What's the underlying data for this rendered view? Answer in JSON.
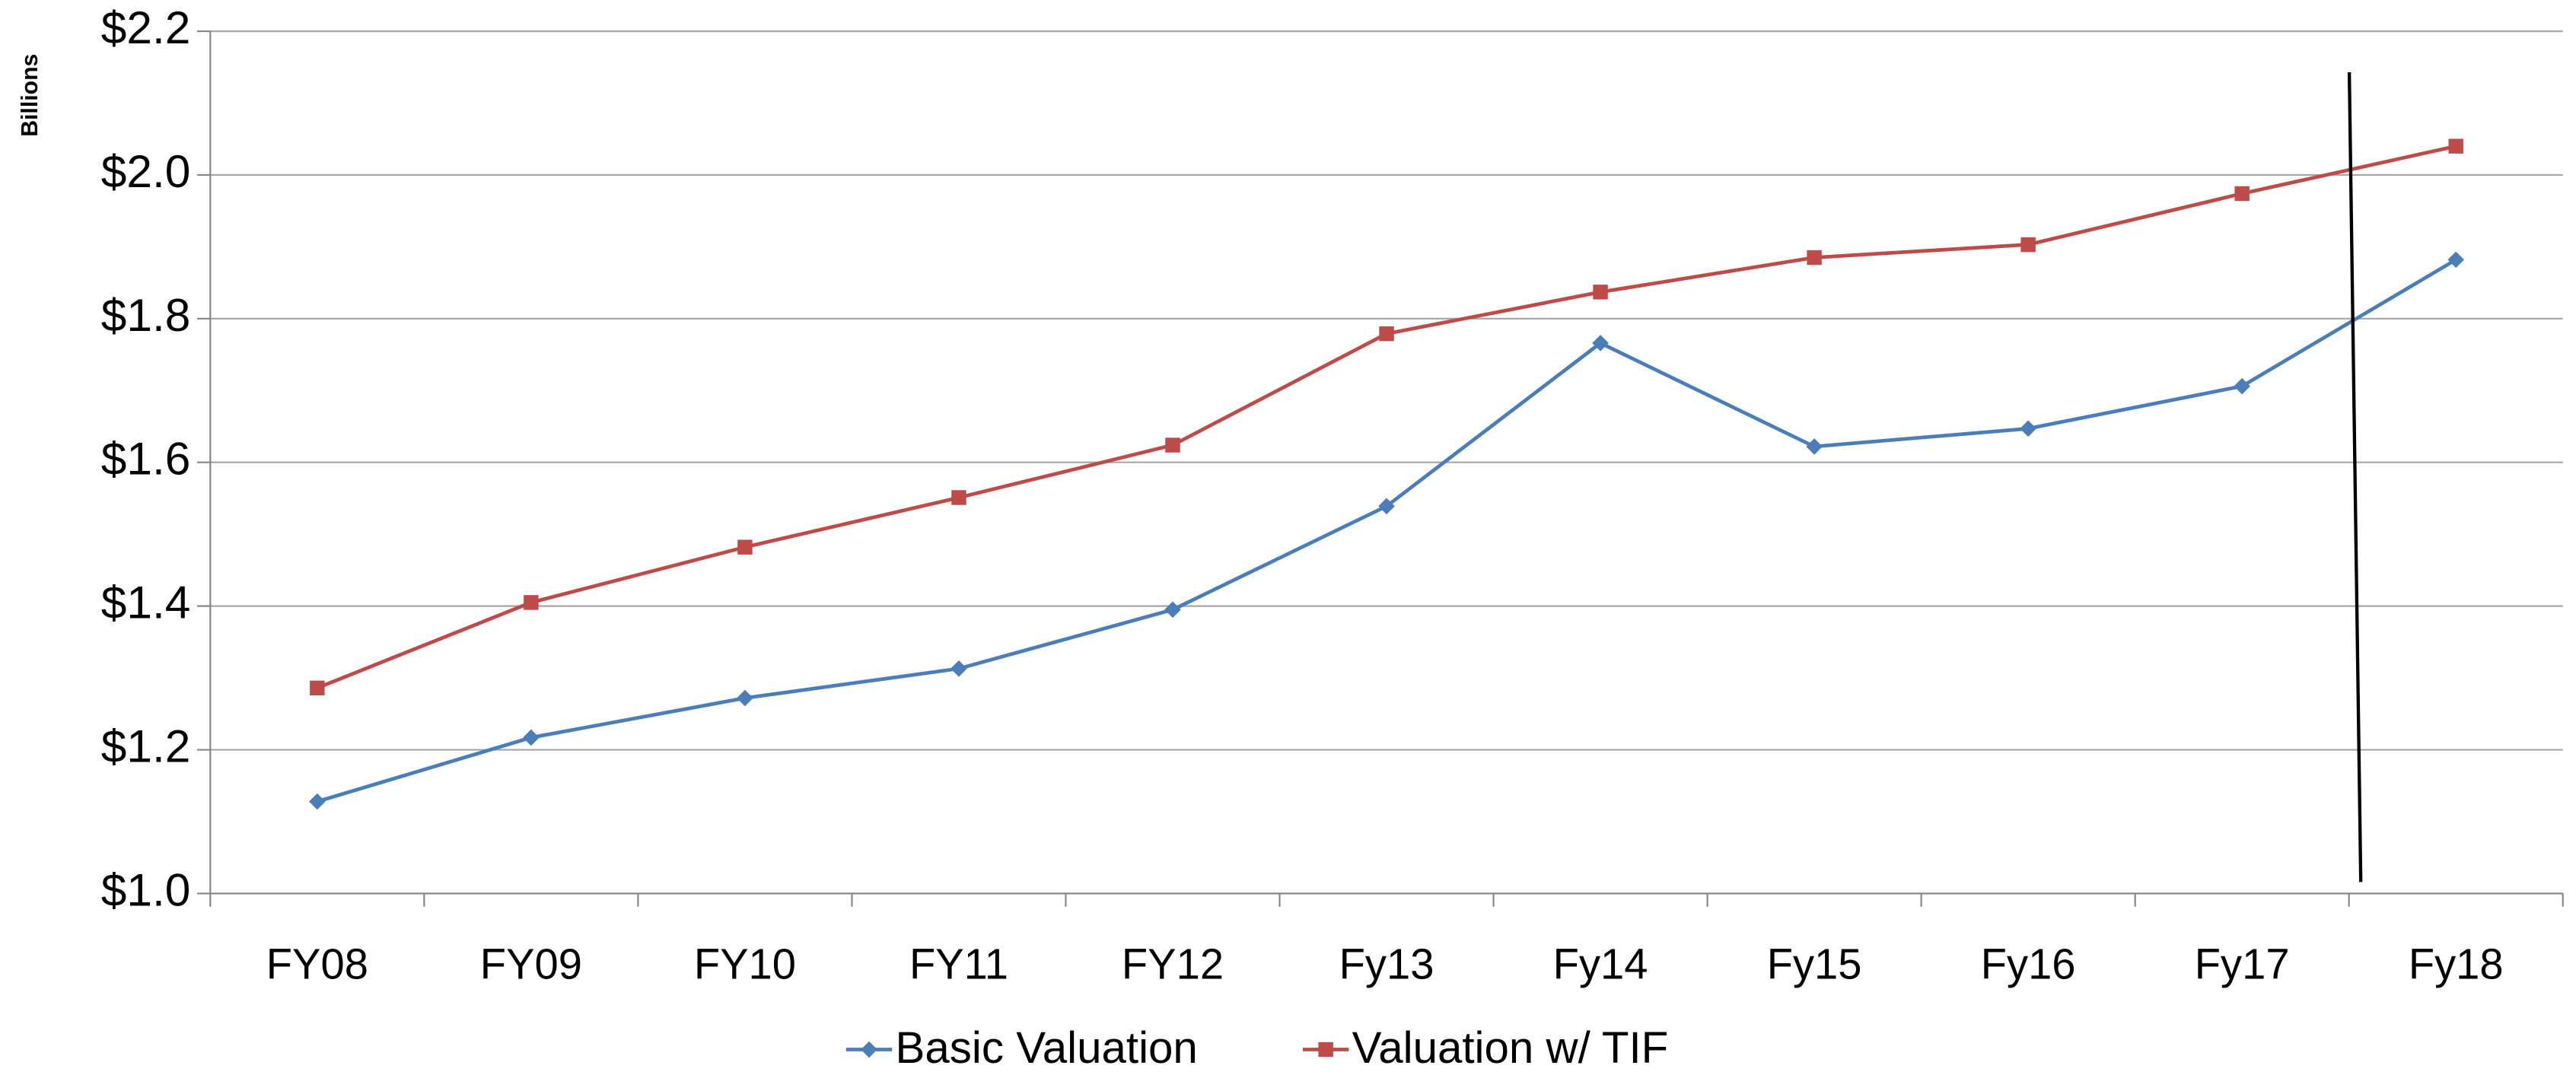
{
  "chart_data": {
    "type": "line",
    "y_axis_label": "Billions",
    "categories": [
      "FY08",
      "FY09",
      "FY10",
      "FY11",
      "FY12",
      "Fy13",
      "Fy14",
      "Fy15",
      "Fy16",
      "Fy17",
      "Fy18"
    ],
    "series": [
      {
        "name": "Basic Valuation",
        "color": "#4a7ebb",
        "marker": "diamond",
        "values": [
          1.128,
          1.217,
          1.272,
          1.313,
          1.395,
          1.539,
          1.766,
          1.622,
          1.647,
          1.706,
          1.882
        ]
      },
      {
        "name": "Valuation w/ TIF",
        "color": "#be4b48",
        "marker": "square",
        "values": [
          1.286,
          1.405,
          1.482,
          1.551,
          1.624,
          1.779,
          1.837,
          1.885,
          1.903,
          1.974,
          2.04
        ]
      }
    ],
    "ylim": [
      1.0,
      2.2
    ],
    "yticks": [
      {
        "value": 1.0,
        "label": "$1.0"
      },
      {
        "value": 1.2,
        "label": "$1.2"
      },
      {
        "value": 1.4,
        "label": "$1.4"
      },
      {
        "value": 1.6,
        "label": "$1.6"
      },
      {
        "value": 1.8,
        "label": "$1.8"
      },
      {
        "value": 2.0,
        "label": "$2.0"
      },
      {
        "value": 2.2,
        "label": "$2.2"
      }
    ],
    "grid": true,
    "legend": "bottom"
  }
}
